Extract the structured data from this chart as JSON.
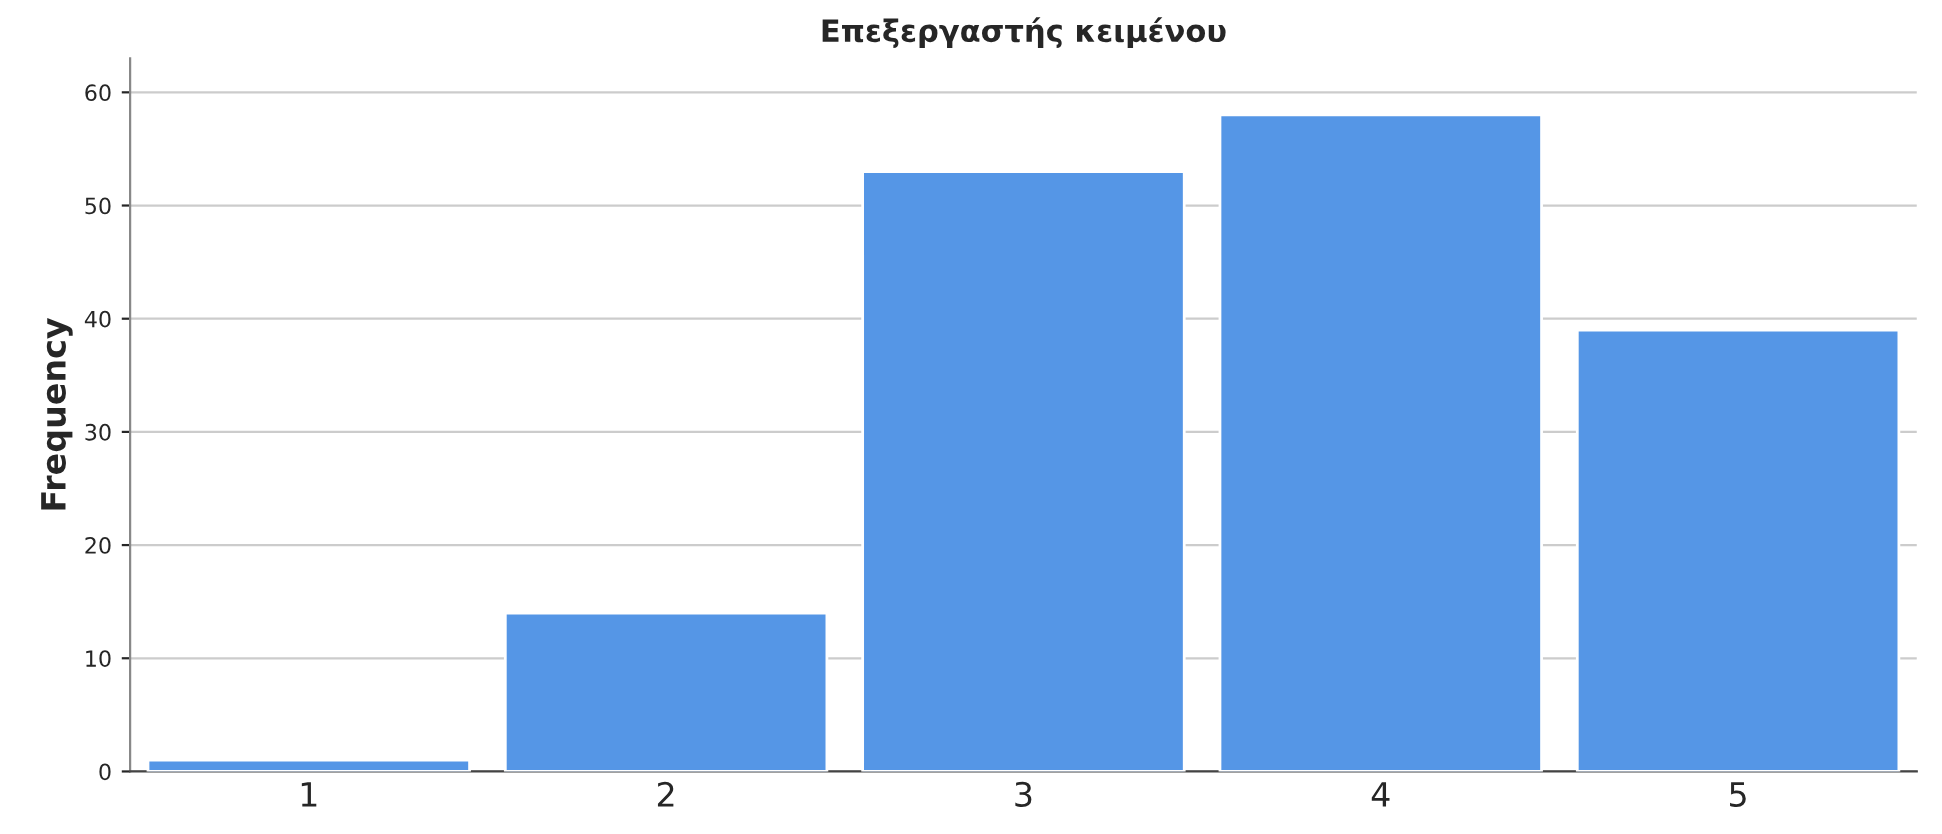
{
  "chart_data": {
    "type": "bar",
    "title": "Επεξεργαστής κειμένου",
    "ylabel": "Frequency",
    "categories": [
      "1",
      "2",
      "3",
      "4",
      "5"
    ],
    "values": [
      1,
      14,
      53,
      58,
      39
    ],
    "color": "#5596e6",
    "ylim": [
      0,
      63
    ],
    "yticks": [
      0,
      10,
      20,
      30,
      40,
      50,
      60
    ],
    "grid": "y"
  }
}
